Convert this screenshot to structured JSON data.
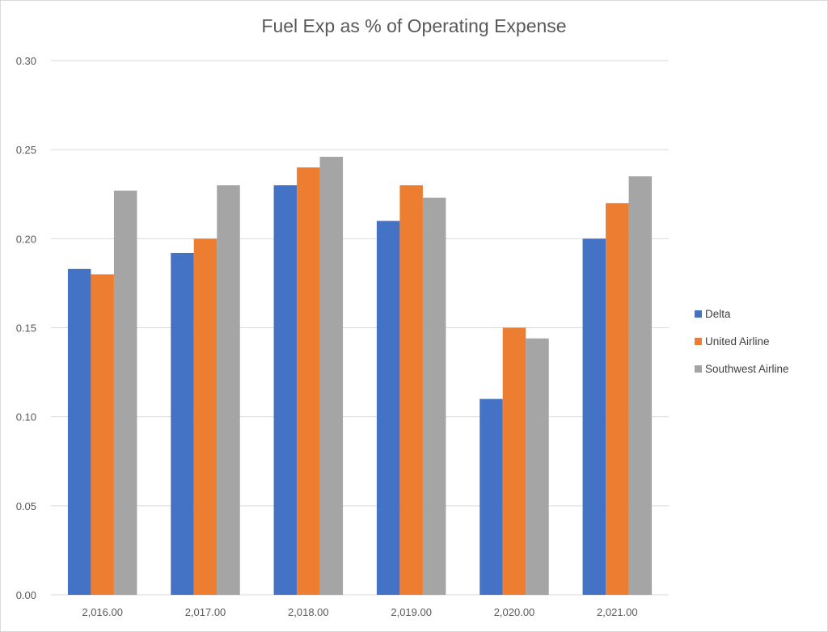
{
  "chart_data": {
    "type": "bar",
    "title": "Fuel Exp as % of Operating Expense",
    "xlabel": "",
    "ylabel": "",
    "categories": [
      "2,016.00",
      "2,017.00",
      "2,018.00",
      "2,019.00",
      "2,020.00",
      "2,021.00"
    ],
    "series": [
      {
        "name": "Delta",
        "color": "#4472c4",
        "values": [
          0.183,
          0.192,
          0.23,
          0.21,
          0.11,
          0.2
        ]
      },
      {
        "name": "United Airline",
        "color": "#ed7d31",
        "values": [
          0.18,
          0.2,
          0.24,
          0.23,
          0.15,
          0.22
        ]
      },
      {
        "name": "Southwest Airline",
        "color": "#a5a5a5",
        "values": [
          0.227,
          0.23,
          0.246,
          0.223,
          0.144,
          0.235
        ]
      }
    ],
    "ylim": [
      0,
      0.3
    ],
    "yticks": [
      "0.00",
      "0.05",
      "0.10",
      "0.15",
      "0.20",
      "0.25",
      "0.30"
    ],
    "grid": true,
    "legend_position": "right"
  }
}
